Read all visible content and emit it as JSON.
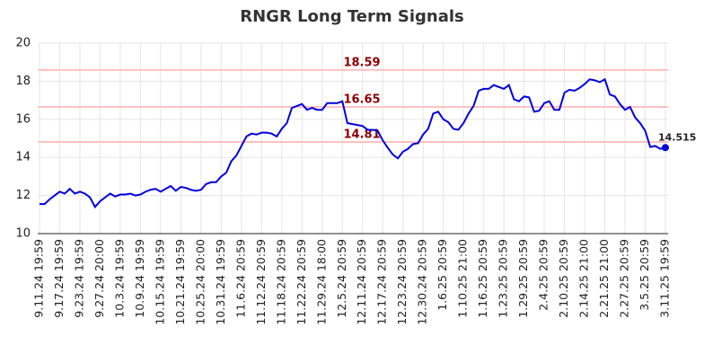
{
  "chart_data": {
    "type": "line",
    "title": "RNGR Long Term Signals",
    "categories": [
      "9.11.24 19:59",
      null,
      null,
      null,
      "9.17.24 19:59",
      null,
      null,
      null,
      "9.23.24 19:59",
      null,
      null,
      null,
      "9.27.24 20:00",
      null,
      null,
      null,
      "10.3.24 19:59",
      null,
      null,
      null,
      "10.9.24 19:59",
      null,
      null,
      null,
      "10.15.24 19:59",
      null,
      null,
      null,
      "10.21.24 19:59",
      null,
      null,
      null,
      "10.25.24 20:00",
      null,
      null,
      null,
      "10.31.24 19:59",
      null,
      null,
      null,
      "11.6.24 20:59",
      null,
      null,
      null,
      "11.12.24 20:59",
      null,
      null,
      null,
      "11.18.24 20:59",
      null,
      null,
      null,
      "11.22.24 20:59",
      null,
      null,
      null,
      "11.29.24 18:00",
      null,
      null,
      null,
      "12.5.24 20:59",
      null,
      null,
      null,
      "12.11.24 20:59",
      null,
      null,
      null,
      "12.17.24 20:59",
      null,
      null,
      null,
      "12.23.24 20:59",
      null,
      null,
      null,
      "12.30.24 20:59",
      null,
      null,
      null,
      "1.6.25 20:59",
      null,
      null,
      null,
      "1.10.25 21:00",
      null,
      null,
      null,
      "1.16.25 20:59",
      null,
      null,
      null,
      "1.23.25 20:59",
      null,
      null,
      null,
      "1.29.25 20:59",
      null,
      null,
      null,
      "2.4.25 20:59",
      null,
      null,
      null,
      "2.10.25 20:59",
      null,
      null,
      null,
      "2.14.25 21:00",
      null,
      null,
      null,
      "2.21.25 21:00",
      null,
      null,
      null,
      "2.27.25 20:59",
      null,
      null,
      null,
      "3.5.25 20:59",
      null,
      null,
      null,
      "3.11.25 19:59"
    ],
    "values": [
      11.55,
      11.55,
      11.8,
      12.0,
      12.2,
      12.1,
      12.35,
      12.1,
      12.2,
      12.1,
      11.9,
      11.4,
      11.7,
      11.9,
      12.1,
      11.95,
      12.05,
      12.05,
      12.1,
      12.0,
      12.05,
      12.2,
      12.3,
      12.35,
      12.2,
      12.35,
      12.5,
      12.25,
      12.45,
      12.4,
      12.3,
      12.25,
      12.3,
      12.6,
      12.7,
      12.7,
      13.0,
      13.2,
      13.8,
      14.1,
      14.6,
      15.1,
      15.25,
      15.2,
      15.3,
      15.3,
      15.25,
      15.1,
      15.5,
      15.8,
      16.6,
      16.7,
      16.8,
      16.5,
      16.6,
      16.5,
      16.5,
      16.85,
      16.85,
      16.85,
      16.95,
      15.8,
      15.75,
      15.7,
      15.65,
      15.45,
      15.45,
      15.4,
      14.9,
      14.5,
      14.15,
      13.95,
      14.3,
      14.45,
      14.7,
      14.75,
      15.2,
      15.5,
      16.3,
      16.4,
      16.0,
      15.85,
      15.5,
      15.45,
      15.8,
      16.3,
      16.7,
      17.5,
      17.6,
      17.6,
      17.8,
      17.7,
      17.6,
      17.8,
      17.05,
      16.95,
      17.2,
      17.15,
      16.4,
      16.45,
      16.85,
      16.95,
      16.5,
      16.5,
      17.4,
      17.55,
      17.5,
      17.65,
      17.85,
      18.1,
      18.05,
      17.95,
      18.1,
      17.3,
      17.2,
      16.8,
      16.5,
      16.65,
      16.1,
      15.8,
      15.4,
      14.55,
      14.6,
      14.45,
      14.515
    ],
    "color": "#0000dd",
    "reference_lines": [
      18.59,
      16.65,
      14.81
    ],
    "reference_color": "#ffc0c0",
    "reference_label_color": "#8b0000",
    "ylim": [
      10,
      20
    ],
    "yticks": [
      10,
      12,
      14,
      16,
      18,
      20
    ],
    "grid": true
  }
}
